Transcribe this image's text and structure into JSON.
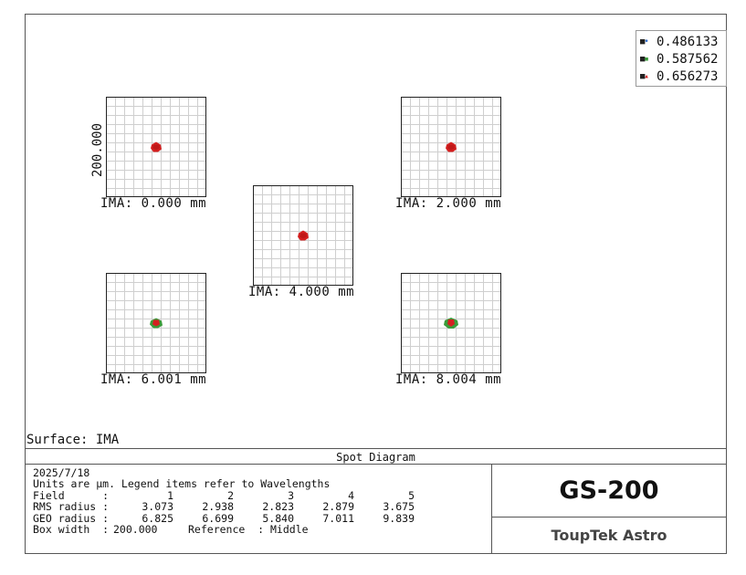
{
  "legend": {
    "items": [
      {
        "label": "0.486133",
        "color": "#2f6fd0",
        "marker": "dot"
      },
      {
        "label": "0.587562",
        "color": "#3a9c3a",
        "marker": "square"
      },
      {
        "label": "0.656273",
        "color": "#d42020",
        "marker": "triangle"
      }
    ]
  },
  "scale_label": "200.000",
  "fields": [
    {
      "label": "IMA: 0.000 mm",
      "spot_color": "#d42020"
    },
    {
      "label": "IMA: 2.000 mm",
      "spot_color": "#d42020"
    },
    {
      "label": "IMA: 4.000 mm",
      "spot_color": "#d42020"
    },
    {
      "label": "IMA: 6.001 mm",
      "spot_color": "#3a9c3a"
    },
    {
      "label": "IMA: 8.004 mm",
      "spot_color": "#3a9c3a"
    }
  ],
  "surface": "Surface: IMA",
  "title": "Spot Diagram",
  "info": {
    "date": "2025/7/18",
    "units_note": "Units are µm. Legend items refer to Wavelengths",
    "field_header": "Field      :",
    "field_numbers": [
      "1",
      "2",
      "3",
      "4",
      "5"
    ],
    "rms_label": "RMS radius :",
    "rms_values": [
      "3.073",
      "2.938",
      "2.823",
      "2.879",
      "3.675"
    ],
    "geo_label": "GEO radius :",
    "geo_values": [
      "6.825",
      "6.699",
      "5.840",
      "7.011",
      "9.839"
    ],
    "box_width_label": "Box width  :",
    "box_width_value": "200.000",
    "reference": "Reference  : Middle"
  },
  "product": "GS-200",
  "brand": "ToupTek Astro"
}
